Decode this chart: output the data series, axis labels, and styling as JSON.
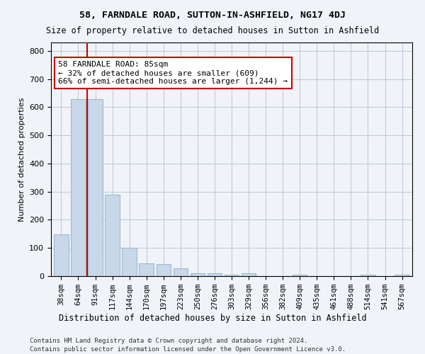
{
  "title1": "58, FARNDALE ROAD, SUTTON-IN-ASHFIELD, NG17 4DJ",
  "title2": "Size of property relative to detached houses in Sutton in Ashfield",
  "xlabel": "Distribution of detached houses by size in Sutton in Ashfield",
  "ylabel": "Number of detached properties",
  "bar_color": "#c8d8e8",
  "bar_edge_color": "#a0b8d0",
  "vline_color": "#cc0000",
  "vline_x": 1.5,
  "annotation_text": "58 FARNDALE ROAD: 85sqm\n← 32% of detached houses are smaller (609)\n66% of semi-detached houses are larger (1,244) →",
  "annotation_box_color": "#ffffff",
  "annotation_box_edge_color": "#cc0000",
  "categories": [
    "38sqm",
    "64sqm",
    "91sqm",
    "117sqm",
    "144sqm",
    "170sqm",
    "197sqm",
    "223sqm",
    "250sqm",
    "276sqm",
    "303sqm",
    "329sqm",
    "356sqm",
    "382sqm",
    "409sqm",
    "435sqm",
    "461sqm",
    "488sqm",
    "514sqm",
    "541sqm",
    "567sqm"
  ],
  "values": [
    148,
    628,
    628,
    290,
    100,
    45,
    42,
    28,
    10,
    10,
    5,
    10,
    0,
    0,
    5,
    0,
    0,
    0,
    5,
    0,
    5
  ],
  "ylim": [
    0,
    830
  ],
  "yticks": [
    0,
    100,
    200,
    300,
    400,
    500,
    600,
    700,
    800
  ],
  "footer1": "Contains HM Land Registry data © Crown copyright and database right 2024.",
  "footer2": "Contains public sector information licensed under the Open Government Licence v3.0.",
  "background_color": "#f0f4f8",
  "grid_color": "#c0ccdc"
}
